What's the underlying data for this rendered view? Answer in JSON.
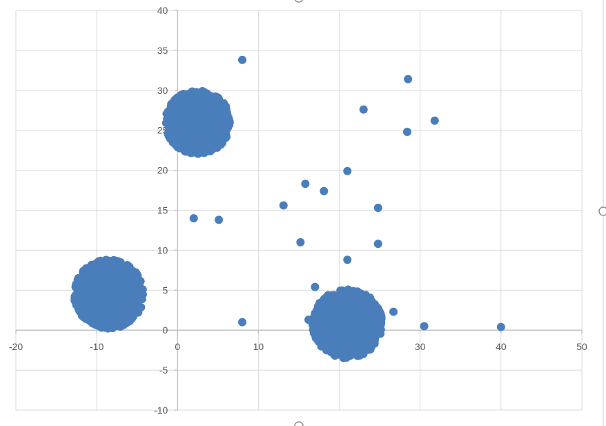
{
  "chart_data": {
    "type": "scatter",
    "title": "",
    "xlabel": "",
    "ylabel": "",
    "xlim": [
      -20,
      50
    ],
    "ylim": [
      -10,
      40
    ],
    "x_ticks": [
      -20,
      -10,
      0,
      10,
      20,
      30,
      40,
      50
    ],
    "y_ticks": [
      -10,
      -5,
      0,
      5,
      10,
      15,
      20,
      25,
      30,
      35,
      40
    ],
    "grid": true,
    "legend": "none",
    "marker_color": "#4a7ebb",
    "clusters": [
      {
        "center": [
          2.5,
          26
        ],
        "radius": 4.0,
        "approx_points": 900
      },
      {
        "center": [
          -8.5,
          4.5
        ],
        "radius": 4.3,
        "approx_points": 900
      },
      {
        "center": [
          21,
          0.8
        ],
        "radius": 4.3,
        "approx_points": 900
      }
    ],
    "series": [
      {
        "points": [
          [
            8,
            33.8
          ],
          [
            28.5,
            31.4
          ],
          [
            23,
            27.6
          ],
          [
            31.8,
            26.2
          ],
          [
            28.4,
            24.8
          ],
          [
            21,
            19.9
          ],
          [
            15.8,
            18.3
          ],
          [
            18.1,
            17.4
          ],
          [
            13.1,
            15.6
          ],
          [
            24.8,
            15.3
          ],
          [
            2,
            14
          ],
          [
            5.1,
            13.8
          ],
          [
            15.2,
            11
          ],
          [
            24.8,
            10.8
          ],
          [
            21,
            8.8
          ],
          [
            17,
            5.4
          ],
          [
            26.7,
            2.3
          ],
          [
            16.2,
            1.3
          ],
          [
            8,
            1
          ],
          [
            30.5,
            0.5
          ],
          [
            40,
            0.4
          ]
        ]
      }
    ]
  }
}
